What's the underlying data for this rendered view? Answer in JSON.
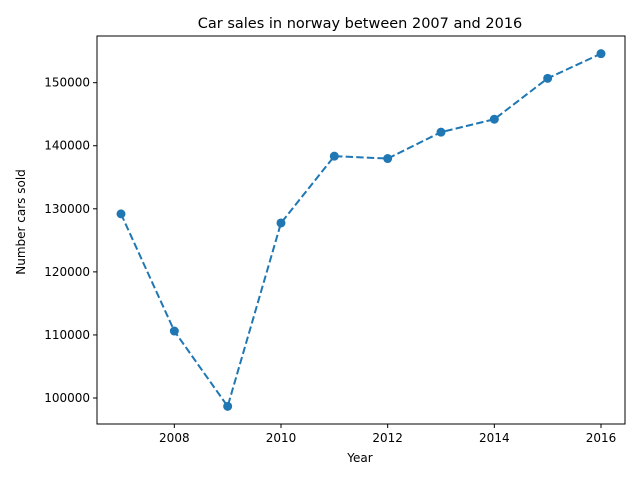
{
  "chart_data": {
    "type": "line",
    "title": "Car sales in norway between 2007 and 2016",
    "xlabel": "Year",
    "ylabel": "Number cars sold",
    "x": [
      2007,
      2008,
      2009,
      2010,
      2011,
      2012,
      2013,
      2014,
      2015,
      2016
    ],
    "series": [
      {
        "values": [
          129195,
          110617,
          98675,
          127754,
          138345,
          137967,
          142151,
          144202,
          150686,
          154603
        ],
        "color": "#1f77b4",
        "line_style": "dashed",
        "marker": "circle"
      }
    ],
    "xlim": [
      2006.55,
      2016.45
    ],
    "ylim": [
      95878,
      157400
    ],
    "x_ticks": [
      2008,
      2010,
      2012,
      2014,
      2016
    ],
    "y_ticks": [
      100000,
      110000,
      120000,
      130000,
      140000,
      150000
    ],
    "grid": false,
    "legend": "none"
  }
}
